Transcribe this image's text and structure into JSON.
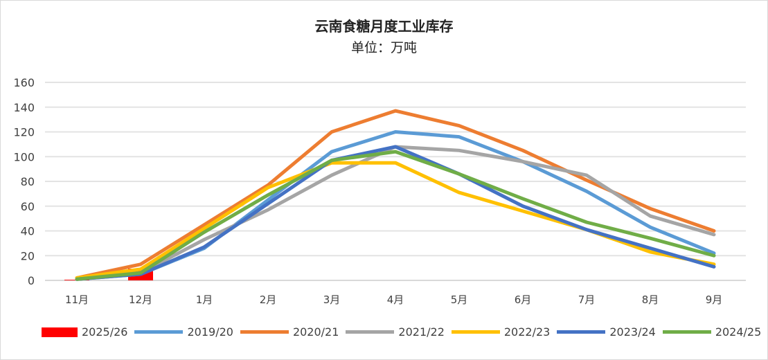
{
  "chart_data": {
    "type": "line",
    "title": "云南食糖月度工业库存",
    "subtitle": "单位：万吨",
    "categories": [
      "11月",
      "12月",
      "1月",
      "2月",
      "3月",
      "4月",
      "5月",
      "6月",
      "7月",
      "8月",
      "9月"
    ],
    "ylim": [
      0,
      160
    ],
    "yticks": [
      0,
      20,
      40,
      60,
      80,
      100,
      120,
      140,
      160
    ],
    "grid": true,
    "legend_position": "bottom",
    "bar_series": {
      "name": "2025/26",
      "color": "#ff0000",
      "values": [
        0.5,
        9.5,
        null,
        null,
        null,
        null,
        null,
        null,
        null,
        null,
        null
      ]
    },
    "series": [
      {
        "name": "2019/20",
        "color": "#5b9bd5",
        "values": [
          1,
          5,
          26,
          65,
          104,
          120,
          116,
          96,
          72,
          43,
          22
        ]
      },
      {
        "name": "2020/21",
        "color": "#ed7d31",
        "values": [
          2,
          13,
          45,
          77,
          120,
          137,
          125,
          105,
          81,
          58,
          40
        ]
      },
      {
        "name": "2021/22",
        "color": "#a5a5a5",
        "values": [
          1,
          6,
          33,
          57,
          85,
          108,
          105,
          96,
          85,
          52,
          37
        ]
      },
      {
        "name": "2022/23",
        "color": "#ffc000",
        "values": [
          2,
          9,
          42,
          75,
          95,
          95,
          71,
          56,
          41,
          23,
          13
        ]
      },
      {
        "name": "2023/24",
        "color": "#4472c4",
        "values": [
          1,
          5,
          27,
          62,
          97,
          108,
          86,
          60,
          41,
          26,
          11
        ]
      },
      {
        "name": "2024/25",
        "color": "#70ad47",
        "values": [
          1,
          6,
          39,
          69,
          97,
          104,
          86,
          66,
          47,
          34,
          20
        ]
      }
    ]
  }
}
